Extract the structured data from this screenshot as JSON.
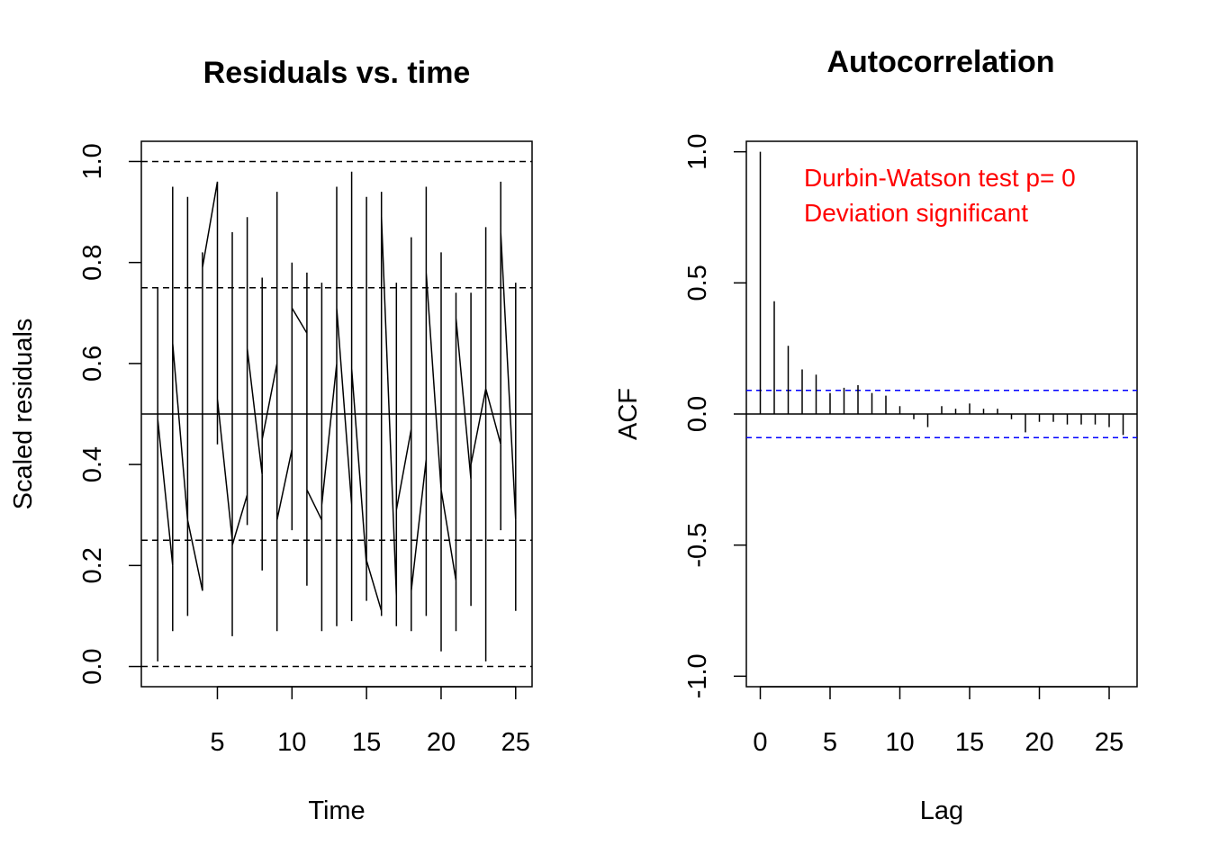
{
  "chart_data": [
    {
      "type": "line",
      "title": "Residuals vs. time",
      "xlabel": "Time",
      "ylabel": "Scaled residuals",
      "xlim": [
        -0.1,
        26.1
      ],
      "ylim": [
        -0.04,
        1.04
      ],
      "xticks": [
        5,
        10,
        15,
        20,
        25
      ],
      "yticks": [
        0.0,
        0.2,
        0.4,
        0.6,
        0.8,
        1.0
      ],
      "ytick_labels": [
        "0.0",
        "0.2",
        "0.4",
        "0.6",
        "0.8",
        "1.0"
      ],
      "hlines": [
        {
          "y": 0.0,
          "style": "dashed"
        },
        {
          "y": 0.25,
          "style": "dashed"
        },
        {
          "y": 0.5,
          "style": "solid"
        },
        {
          "y": 0.75,
          "style": "dashed"
        },
        {
          "y": 1.0,
          "style": "dashed"
        }
      ],
      "series": [
        {
          "values": [
            [
              1,
              0.75
            ],
            [
              1,
              0.01
            ],
            [
              1,
              0.49
            ],
            [
              2,
              0.2
            ],
            [
              2,
              0.95
            ],
            [
              2,
              0.07
            ],
            [
              2,
              0.64
            ],
            [
              3,
              0.29
            ],
            [
              3,
              0.93
            ],
            [
              3,
              0.1
            ],
            [
              3,
              0.29
            ],
            [
              4,
              0.15
            ],
            [
              4,
              0.82
            ],
            [
              4,
              0.79
            ],
            [
              5,
              0.96
            ],
            [
              5,
              0.44
            ],
            [
              5,
              0.53
            ],
            [
              6,
              0.25
            ],
            [
              6,
              0.86
            ],
            [
              6,
              0.06
            ],
            [
              6,
              0.24
            ],
            [
              7,
              0.34
            ],
            [
              7,
              0.89
            ],
            [
              7,
              0.28
            ],
            [
              7,
              0.63
            ],
            [
              8,
              0.38
            ],
            [
              8,
              0.77
            ],
            [
              8,
              0.19
            ],
            [
              8,
              0.45
            ],
            [
              9,
              0.6
            ],
            [
              9,
              0.94
            ],
            [
              9,
              0.07
            ],
            [
              9,
              0.29
            ],
            [
              10,
              0.43
            ],
            [
              10,
              0.8
            ],
            [
              10,
              0.27
            ],
            [
              10,
              0.71
            ],
            [
              11,
              0.66
            ],
            [
              11,
              0.78
            ],
            [
              11,
              0.16
            ],
            [
              11,
              0.35
            ],
            [
              12,
              0.29
            ],
            [
              12,
              0.76
            ],
            [
              12,
              0.07
            ],
            [
              12,
              0.32
            ],
            [
              13,
              0.6
            ],
            [
              13,
              0.95
            ],
            [
              13,
              0.08
            ],
            [
              13,
              0.71
            ],
            [
              14,
              0.32
            ],
            [
              14,
              0.98
            ],
            [
              14,
              0.09
            ],
            [
              14,
              0.59
            ],
            [
              15,
              0.2
            ],
            [
              15,
              0.93
            ],
            [
              15,
              0.13
            ],
            [
              15,
              0.21
            ],
            [
              16,
              0.11
            ],
            [
              16,
              0.94
            ],
            [
              16,
              0.1
            ],
            [
              16,
              0.89
            ],
            [
              17,
              0.14
            ],
            [
              17,
              0.76
            ],
            [
              17,
              0.08
            ],
            [
              17,
              0.31
            ],
            [
              18,
              0.47
            ],
            [
              18,
              0.85
            ],
            [
              18,
              0.07
            ],
            [
              18,
              0.15
            ],
            [
              19,
              0.41
            ],
            [
              19,
              0.95
            ],
            [
              19,
              0.1
            ],
            [
              19,
              0.78
            ],
            [
              20,
              0.35
            ],
            [
              20,
              0.82
            ],
            [
              20,
              0.03
            ],
            [
              20,
              0.35
            ],
            [
              21,
              0.17
            ],
            [
              21,
              0.74
            ],
            [
              21,
              0.07
            ],
            [
              21,
              0.69
            ],
            [
              22,
              0.37
            ],
            [
              22,
              0.74
            ],
            [
              22,
              0.12
            ],
            [
              22,
              0.4
            ],
            [
              23,
              0.55
            ],
            [
              23,
              0.87
            ],
            [
              23,
              0.01
            ],
            [
              23,
              0.55
            ],
            [
              24,
              0.44
            ],
            [
              24,
              0.96
            ],
            [
              24,
              0.27
            ],
            [
              24,
              0.86
            ],
            [
              25,
              0.29
            ],
            [
              25,
              0.76
            ],
            [
              25,
              0.11
            ],
            [
              25,
              0.75
            ]
          ]
        }
      ]
    },
    {
      "type": "bar",
      "title": "Autocorrelation",
      "xlabel": "Lag",
      "ylabel": "ACF",
      "xlim": [
        -1,
        27
      ],
      "ylim": [
        -1.04,
        1.04
      ],
      "xticks": [
        0,
        5,
        10,
        15,
        20,
        25
      ],
      "yticks": [
        -1.0,
        -0.5,
        0.0,
        0.5,
        1.0
      ],
      "ytick_labels": [
        "-1.0",
        "-0.5",
        "0.0",
        "0.5",
        "1.0"
      ],
      "lags": [
        0,
        1,
        2,
        3,
        4,
        5,
        6,
        7,
        8,
        9,
        10,
        11,
        12,
        13,
        14,
        15,
        16,
        17,
        18,
        19,
        20,
        21,
        22,
        23,
        24,
        25,
        26
      ],
      "values": [
        1.0,
        0.43,
        0.26,
        0.17,
        0.15,
        0.08,
        0.1,
        0.11,
        0.08,
        0.07,
        0.03,
        -0.02,
        -0.05,
        0.03,
        0.02,
        0.04,
        0.02,
        0.02,
        -0.02,
        -0.07,
        -0.03,
        -0.03,
        -0.04,
        -0.04,
        -0.04,
        -0.05,
        -0.08
      ],
      "confidence_band": 0.09,
      "band_color": "#0000ff",
      "annotations": [
        "Durbin-Watson test  p= 0",
        "Deviation  significant"
      ],
      "annotation_color": "#ff0000"
    }
  ]
}
